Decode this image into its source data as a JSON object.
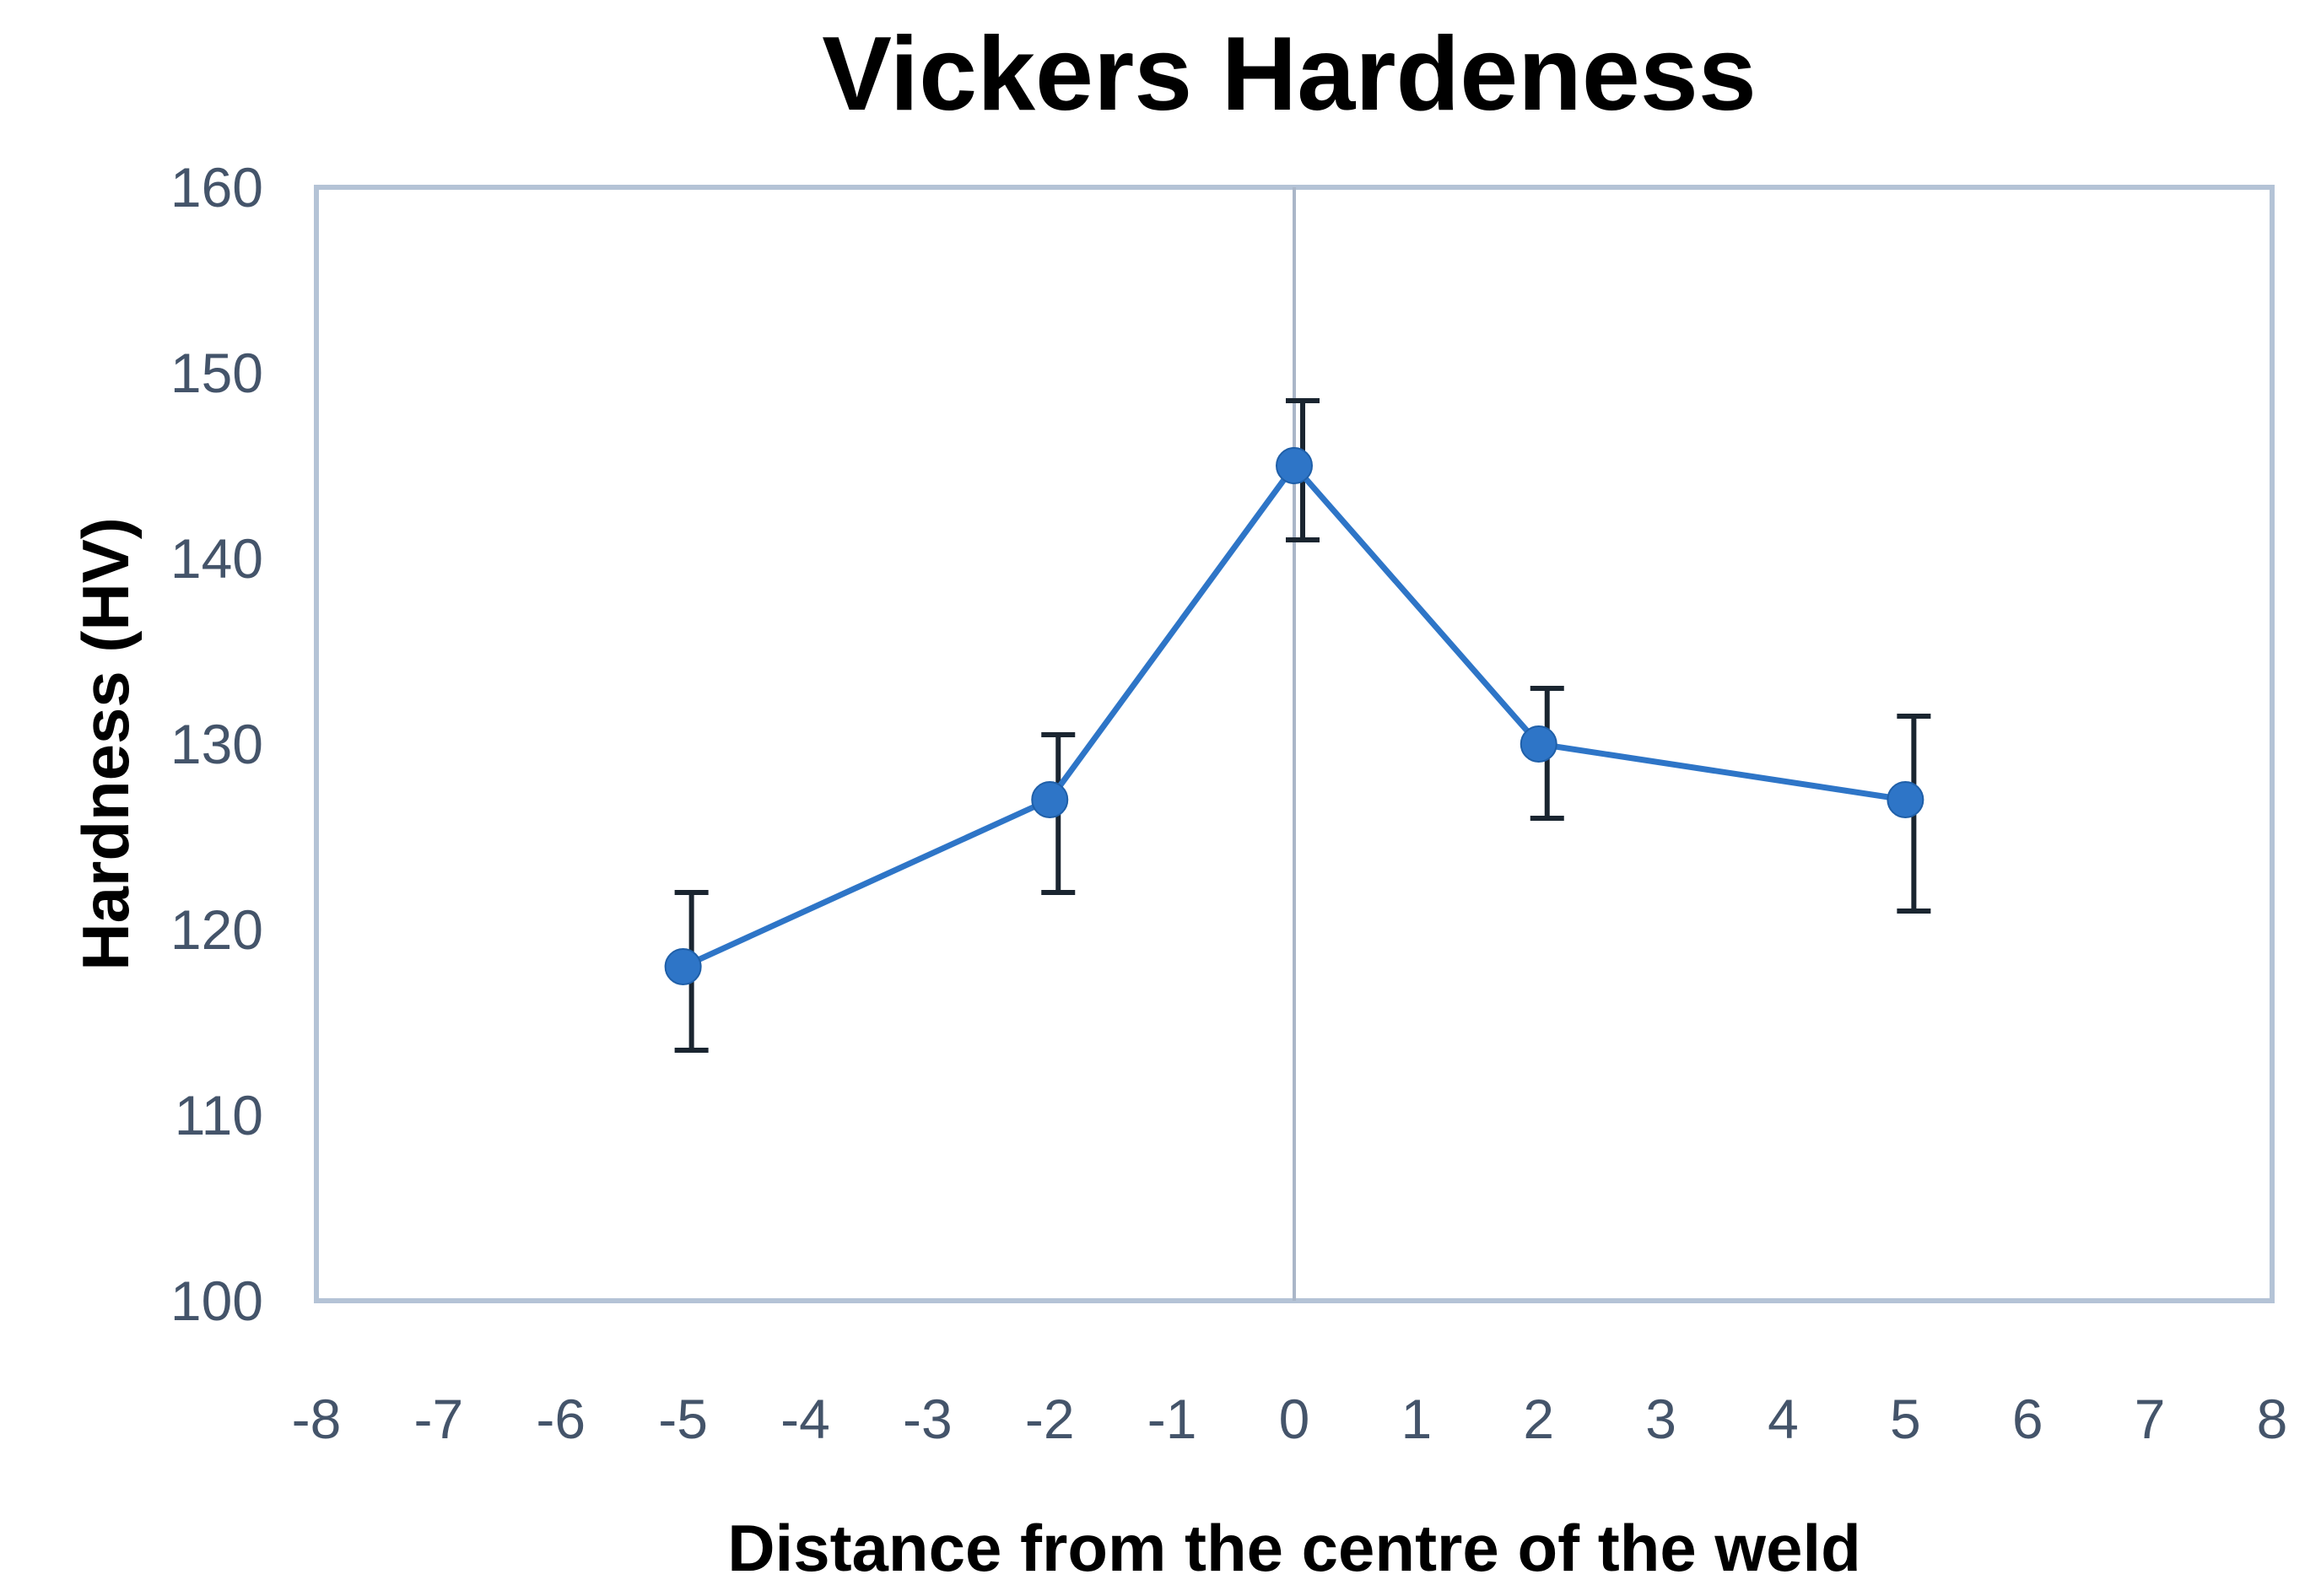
{
  "chart_data": {
    "type": "scatter",
    "title": "Vickers Hardeness",
    "xlabel": "Distance from the centre of the weld",
    "ylabel": "Hardness (HV)",
    "xlim": [
      -8,
      8
    ],
    "ylim": [
      100,
      160
    ],
    "xticks": [
      -8,
      -7,
      -6,
      -5,
      -4,
      -3,
      -2,
      -1,
      0,
      1,
      2,
      3,
      4,
      5,
      6,
      7,
      8
    ],
    "yticks": [
      100,
      110,
      120,
      130,
      140,
      150,
      160
    ],
    "grid": false,
    "legend": "none",
    "series": [
      {
        "x": [
          -5,
          -2,
          0,
          2,
          5
        ],
        "y": [
          118,
          127,
          145,
          130,
          127
        ],
        "error_plus": [
          4,
          3.5,
          3.5,
          3,
          4.5
        ],
        "error_minus": [
          4.5,
          5,
          4,
          4,
          6
        ],
        "color": "#2e75c7",
        "error_color": "#1a2530"
      }
    ],
    "frame_color": "#b4c3d6",
    "axis_line_color": "#aab6c8"
  }
}
